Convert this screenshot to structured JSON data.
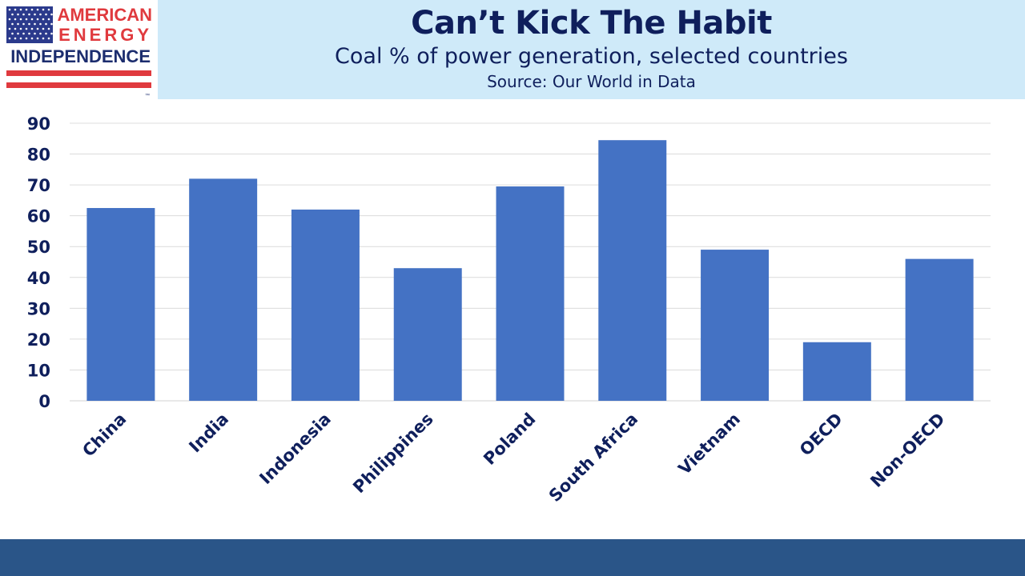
{
  "logo": {
    "line1": "AMERICAN",
    "line2": "ENERGY",
    "line3": "INDEPENDENCE",
    "tm": "™",
    "colors": {
      "red": "#e03a3e",
      "blue": "#2b3a8c",
      "navy": "#1c2d6e"
    }
  },
  "header": {
    "title": "Can’t Kick The Habit",
    "subtitle": "Coal % of power generation, selected countries",
    "source": "Source: Our World in Data",
    "background": "#cfeaf9",
    "text_color": "#0f1f5c"
  },
  "chart_data": {
    "type": "bar",
    "categories": [
      "China",
      "India",
      "Indonesia",
      "Philippines",
      "Poland",
      "South Africa",
      "Vietnam",
      "OECD",
      "Non-OECD"
    ],
    "values": [
      62.5,
      72,
      62,
      43,
      69.5,
      84.5,
      49,
      19,
      46
    ],
    "ylim": [
      0,
      90
    ],
    "yticks": [
      "0",
      "10",
      "20",
      "30",
      "40",
      "50",
      "60",
      "70",
      "80",
      "90"
    ],
    "grid": true,
    "legend": "none",
    "bar_color": "#4472c4",
    "label_color": "#0f1f5c"
  },
  "footer": {
    "color": "#2a5588"
  }
}
